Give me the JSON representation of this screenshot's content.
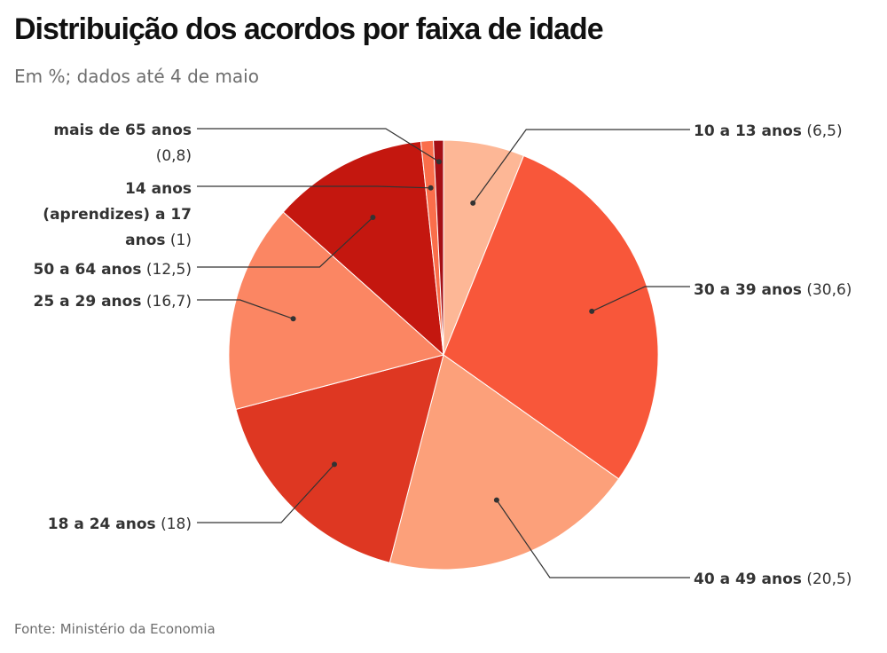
{
  "title": "Distribuição dos acordos por faixa de idade",
  "subtitle": "Em %; dados até 4 de maio",
  "source": "Fonte: Ministério da Economia",
  "chart_data": {
    "type": "pie",
    "title": "Distribuição dos acordos por faixa de idade",
    "subtitle": "Em %; dados até 4 de maio",
    "unit": "%",
    "start_angle": "12 o'clock, clockwise",
    "slices": [
      {
        "label": "10 a 13 anos",
        "value": 6.5,
        "value_text": "(6,5)",
        "color": "#fdb796"
      },
      {
        "label": "30 a 39 anos",
        "value": 30.6,
        "value_text": "(30,6)",
        "color": "#f8573a"
      },
      {
        "label": "40 a 49 anos",
        "value": 20.5,
        "value_text": "(20,5)",
        "color": "#fca07a"
      },
      {
        "label": "18 a 24 anos",
        "value": 18,
        "value_text": "(18)",
        "color": "#de3722"
      },
      {
        "label": "25 a 29 anos",
        "value": 16.7,
        "value_text": "(16,7)",
        "color": "#fb8663"
      },
      {
        "label": "50 a 64 anos",
        "value": 12.5,
        "value_text": "(12,5)",
        "color": "#c4170f"
      },
      {
        "label": "14 anos (aprendizes) a 17 anos",
        "label_lines": [
          "14 anos",
          "(aprendizes) a 17",
          "anos"
        ],
        "value": 1,
        "value_text": "(1)",
        "color": "#fa6e4b"
      },
      {
        "label": "mais de 65 anos",
        "value": 0.8,
        "value_text": "(0,8)",
        "color": "#a50f15"
      }
    ]
  }
}
